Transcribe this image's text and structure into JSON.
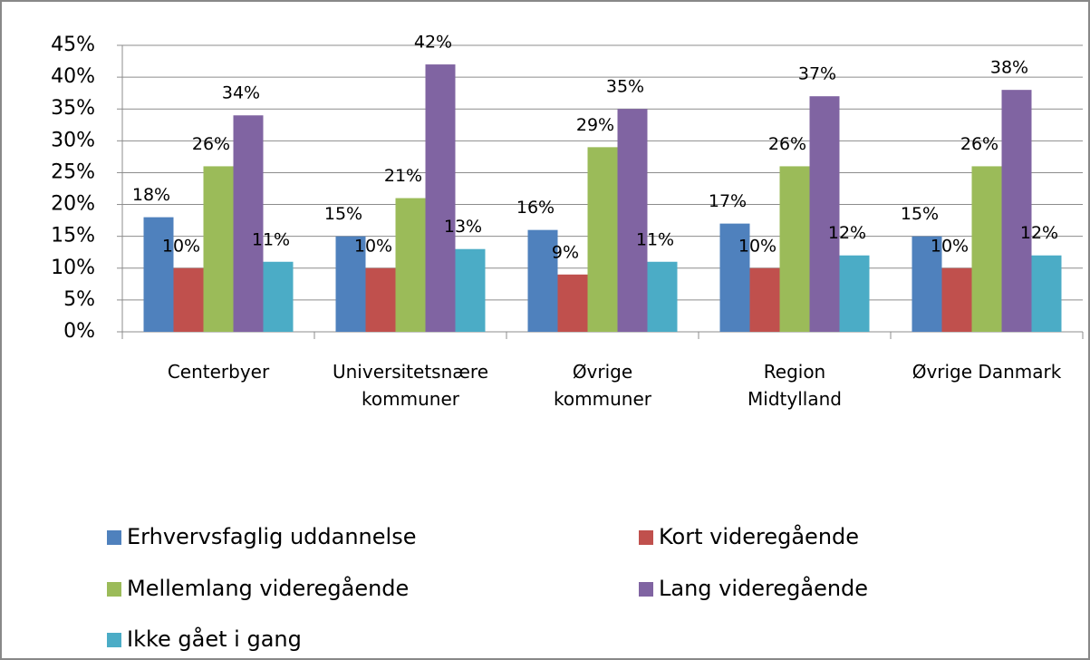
{
  "chart_data": {
    "type": "bar",
    "categories": [
      "Centerbyer",
      "Universitetsnære\nkommuner",
      "Øvrige\nkommuner",
      "Region\nMidtylland",
      "Øvrige Danmark"
    ],
    "series": [
      {
        "name": "Erhvervsfaglig uddannelse",
        "color": "#4f81bd",
        "values": [
          18,
          15,
          16,
          17,
          15
        ],
        "value_labels": [
          "18%",
          "15%",
          "16%",
          "17%",
          "15%"
        ]
      },
      {
        "name": "Kort videregående",
        "color": "#c0504d",
        "values": [
          10,
          10,
          9,
          10,
          10
        ],
        "value_labels": [
          "10%",
          "10%",
          "9%",
          "10%",
          "10%"
        ]
      },
      {
        "name": "Mellemlang videregående",
        "color": "#9bbb59",
        "values": [
          26,
          21,
          29,
          26,
          26
        ],
        "value_labels": [
          "26%",
          "21%",
          "29%",
          "26%",
          "26%"
        ]
      },
      {
        "name": "Lang videregående",
        "color": "#8064a2",
        "values": [
          34,
          42,
          35,
          37,
          38
        ],
        "value_labels": [
          "34%",
          "42%",
          "35%",
          "37%",
          "38%"
        ]
      },
      {
        "name": "Ikke gået i gang",
        "color": "#4bacc6",
        "values": [
          11,
          13,
          11,
          12,
          12
        ],
        "value_labels": [
          "11%",
          "13%",
          "11%",
          "12%",
          "12%"
        ]
      }
    ],
    "ylim": [
      0,
      45
    ],
    "yticks": [
      {
        "value": 0,
        "label": "0%"
      },
      {
        "value": 5,
        "label": "5%"
      },
      {
        "value": 10,
        "label": "10%"
      },
      {
        "value": 15,
        "label": "15%"
      },
      {
        "value": 20,
        "label": "20%"
      },
      {
        "value": 25,
        "label": "25%"
      },
      {
        "value": 30,
        "label": "30%"
      },
      {
        "value": 35,
        "label": "35%"
      },
      {
        "value": 40,
        "label": "40%"
      },
      {
        "value": 45,
        "label": "45%"
      }
    ],
    "grid": true,
    "legend": "bottom"
  }
}
